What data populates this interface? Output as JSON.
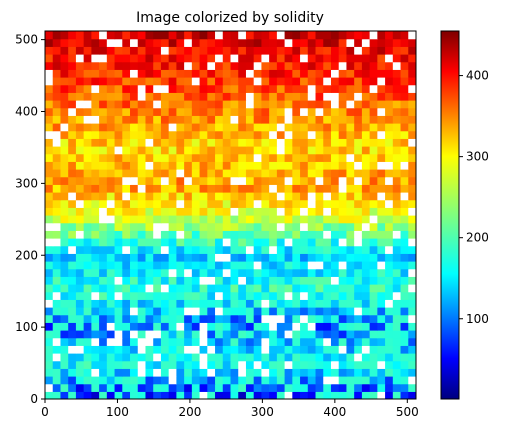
{
  "chart_data": {
    "type": "heatmap",
    "title": "Image colorized by solidity",
    "xlabel": "",
    "ylabel": "",
    "xlim": [
      0,
      512
    ],
    "ylim": [
      0,
      512
    ],
    "xticks": [
      0,
      100,
      200,
      300,
      400,
      500
    ],
    "yticks": [
      0,
      100,
      200,
      300,
      400,
      500
    ],
    "colormap": "jet",
    "colorbar": {
      "range": [
        1,
        455
      ],
      "ticks": [
        100,
        200,
        300,
        400
      ]
    },
    "value_profile": {
      "description_rows": "dominant solidity value by image row (y)",
      "y": [
        0,
        50,
        100,
        150,
        200,
        250,
        300,
        350,
        400,
        450,
        512
      ],
      "values": [
        40,
        180,
        90,
        190,
        150,
        260,
        330,
        300,
        340,
        380,
        420
      ]
    },
    "background_color": "#ffffff",
    "grid": false
  }
}
